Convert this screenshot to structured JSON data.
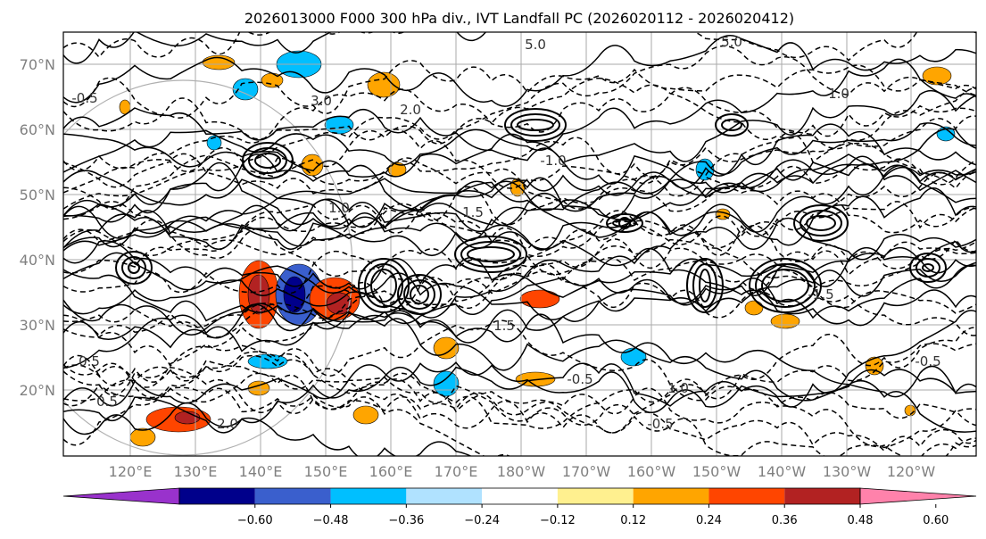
{
  "title": "2026013000 F000 300 hPa div., IVT Landfall PC (2026020112 - 2026020412)",
  "lat_labels": [
    "70°N",
    "60°N",
    "50°N",
    "40°N",
    "30°N",
    "20°N"
  ],
  "lon_labels": [
    "120°E",
    "130°E",
    "140°E",
    "150°E",
    "160°E",
    "170°E",
    "180°W",
    "170°W",
    "160°W",
    "150°W",
    "140°W",
    "130°W",
    "120°W"
  ],
  "colorbar": {
    "colors": [
      "#9932cc",
      "#00008b",
      "#3a5fcd",
      "#00bfff",
      "#b0e2ff",
      "#ffffff",
      "#fff08f",
      "#ffa500",
      "#ff4500",
      "#b22222",
      "#ff82ab"
    ],
    "tick_labels": [
      "−0.60",
      "−0.48",
      "−0.36",
      "−0.24",
      "−0.12",
      "0.12",
      "0.24",
      "0.36",
      "0.48",
      "0.60"
    ]
  },
  "contour_labels": [
    "-0.5",
    "3.0",
    "5.0",
    "1.0",
    "2.0",
    "1.5",
    "0.5",
    "-1.0",
    "-0.5",
    "1.5",
    "0.5",
    "1.0",
    "-1.5",
    "5.0",
    "2.0",
    "-0.5",
    "1.0",
    "-0.5"
  ],
  "fill_colors": {
    "pos_light": "#ffa500",
    "pos_mid": "#ff4500",
    "pos_dark": "#b22222",
    "neg_light": "#00bfff",
    "neg_mid": "#3a5fcd",
    "neg_dark": "#00008b"
  }
}
